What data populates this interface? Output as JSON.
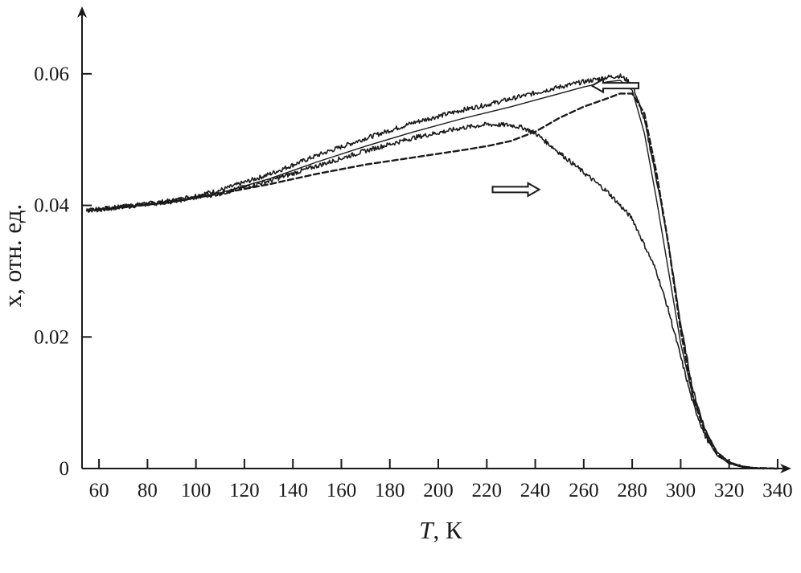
{
  "chart_data": {
    "type": "line",
    "xlabel_var": "T",
    "xlabel_rest": ", К",
    "ylabel": "x, отн. ед.",
    "xlim": [
      53,
      345
    ],
    "ylim": [
      0,
      0.07
    ],
    "xticks": [
      60,
      80,
      100,
      120,
      140,
      160,
      180,
      200,
      220,
      240,
      260,
      280,
      300,
      320,
      340
    ],
    "yticks": [
      0,
      0.02,
      0.04,
      0.06
    ],
    "ytick_labels": [
      "0",
      "0.02",
      "0.04",
      "0.06"
    ],
    "grid": false,
    "legend": "none",
    "series": [
      {
        "style": "noisy-solid",
        "x": [
          55,
          70,
          90,
          110,
          130,
          150,
          170,
          190,
          210,
          220,
          230,
          240,
          250,
          260,
          270,
          275,
          280,
          285,
          290,
          295,
          300,
          305,
          310,
          315,
          320,
          325,
          330,
          335,
          340
        ],
        "y": [
          0.0392,
          0.0398,
          0.0407,
          0.0423,
          0.0447,
          0.0476,
          0.0502,
          0.0526,
          0.0545,
          0.0553,
          0.0562,
          0.0571,
          0.058,
          0.0588,
          0.0595,
          0.0597,
          0.0585,
          0.053,
          0.044,
          0.034,
          0.022,
          0.012,
          0.006,
          0.0025,
          0.001,
          0.0004,
          0.0001,
          0.0,
          0.0
        ]
      },
      {
        "style": "solid",
        "x": [
          55,
          70,
          90,
          110,
          130,
          150,
          170,
          190,
          210,
          220,
          230,
          240,
          250,
          260,
          270,
          275,
          280,
          285,
          290,
          295,
          300,
          305,
          310,
          315,
          320,
          325,
          330,
          335,
          340
        ],
        "y": [
          0.0392,
          0.0397,
          0.0405,
          0.0419,
          0.044,
          0.0466,
          0.049,
          0.0512,
          0.0532,
          0.0541,
          0.055,
          0.056,
          0.057,
          0.058,
          0.0588,
          0.059,
          0.0575,
          0.051,
          0.041,
          0.03,
          0.019,
          0.011,
          0.006,
          0.0025,
          0.001,
          0.0004,
          0.0001,
          0.0,
          0.0
        ]
      },
      {
        "style": "noisy-solid",
        "x": [
          55,
          70,
          90,
          110,
          130,
          150,
          170,
          190,
          210,
          220,
          230,
          235,
          240,
          250,
          260,
          270,
          280,
          290,
          295,
          300,
          305,
          310,
          315,
          320,
          325,
          330,
          340
        ],
        "y": [
          0.0392,
          0.0398,
          0.0406,
          0.0418,
          0.0437,
          0.046,
          0.0483,
          0.0503,
          0.0518,
          0.0523,
          0.0522,
          0.0518,
          0.051,
          0.048,
          0.045,
          0.042,
          0.038,
          0.03,
          0.024,
          0.017,
          0.01,
          0.005,
          0.002,
          0.0008,
          0.0003,
          0.0001,
          0.0
        ]
      },
      {
        "style": "dashed",
        "x": [
          55,
          70,
          90,
          110,
          130,
          150,
          170,
          190,
          210,
          220,
          230,
          240,
          250,
          260,
          270,
          275,
          280,
          285,
          290,
          295,
          300,
          305,
          310,
          315,
          320,
          325,
          330,
          340
        ],
        "y": [
          0.0392,
          0.0397,
          0.0405,
          0.0418,
          0.0432,
          0.0448,
          0.0462,
          0.0473,
          0.0484,
          0.049,
          0.0498,
          0.0512,
          0.0533,
          0.055,
          0.0563,
          0.057,
          0.057,
          0.054,
          0.045,
          0.034,
          0.021,
          0.011,
          0.0055,
          0.0022,
          0.0008,
          0.0003,
          0.0001,
          0.0
        ]
      }
    ],
    "annotations": [
      {
        "type": "arrow",
        "direction": "left",
        "x": 273,
        "y": 0.0582
      },
      {
        "type": "arrow",
        "direction": "right",
        "x": 232,
        "y": 0.0424
      }
    ]
  }
}
